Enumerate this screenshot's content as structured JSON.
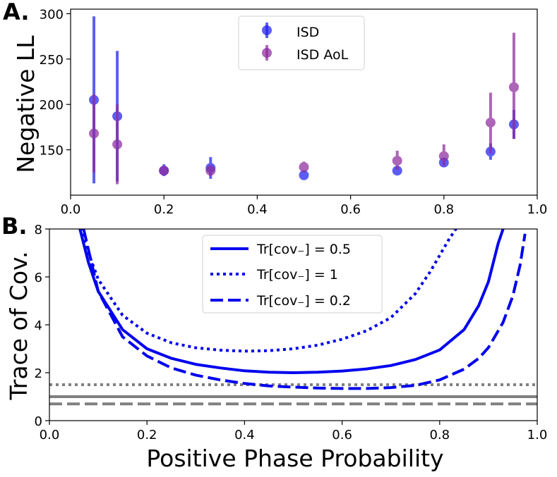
{
  "chart_data": [
    {
      "type": "scatter",
      "panel_label": "A.",
      "title": "",
      "xlabel": "",
      "ylabel": "Negative LL",
      "xlim": [
        0.0,
        1.0
      ],
      "ylim": [
        100,
        305
      ],
      "xticks": [
        "0.0",
        "0.2",
        "0.4",
        "0.6",
        "0.8",
        "1.0"
      ],
      "yticks": [
        "150",
        "200",
        "250",
        "300"
      ],
      "grid": false,
      "legend_position": "top-center",
      "series": [
        {
          "name": "ISD",
          "color": "#2020ee",
          "points": [
            {
              "x": 0.05,
              "y": 205,
              "lo": 113,
              "hi": 297
            },
            {
              "x": 0.1,
              "y": 187,
              "lo": 115,
              "hi": 259
            },
            {
              "x": 0.2,
              "y": 127,
              "lo": 121,
              "hi": 134
            },
            {
              "x": 0.3,
              "y": 130,
              "lo": 118,
              "hi": 142
            },
            {
              "x": 0.5,
              "y": 122,
              "lo": 118,
              "hi": 126
            },
            {
              "x": 0.7,
              "y": 127,
              "lo": 123,
              "hi": 131
            },
            {
              "x": 0.8,
              "y": 136,
              "lo": 131,
              "hi": 141
            },
            {
              "x": 0.9,
              "y": 148,
              "lo": 139,
              "hi": 157
            },
            {
              "x": 0.95,
              "y": 178,
              "lo": 162,
              "hi": 194
            }
          ]
        },
        {
          "name": "ISD AoL",
          "color": "#8e2a9e",
          "points": [
            {
              "x": 0.05,
              "y": 168,
              "lo": 125,
              "hi": 211
            },
            {
              "x": 0.1,
              "y": 156,
              "lo": 112,
              "hi": 200
            },
            {
              "x": 0.2,
              "y": 127,
              "lo": 122,
              "hi": 132
            },
            {
              "x": 0.3,
              "y": 127,
              "lo": 121,
              "hi": 133
            },
            {
              "x": 0.5,
              "y": 131,
              "lo": 125,
              "hi": 137
            },
            {
              "x": 0.7,
              "y": 138,
              "lo": 128,
              "hi": 149
            },
            {
              "x": 0.8,
              "y": 143,
              "lo": 132,
              "hi": 156
            },
            {
              "x": 0.9,
              "y": 180,
              "lo": 146,
              "hi": 213
            },
            {
              "x": 0.95,
              "y": 219,
              "lo": 162,
              "hi": 279
            }
          ]
        }
      ]
    },
    {
      "type": "line",
      "panel_label": "B.",
      "title": "",
      "xlabel": "Positive Phase Probability",
      "ylabel": "Trace of Cov.",
      "xlim": [
        0.0,
        1.0
      ],
      "ylim": [
        0,
        8
      ],
      "xticks": [
        "0.0",
        "0.2",
        "0.4",
        "0.6",
        "0.8",
        "1.0"
      ],
      "yticks": [
        "0",
        "2",
        "4",
        "6",
        "8"
      ],
      "grid": false,
      "legend_position": "top-center",
      "series": [
        {
          "name": "Tr[cov₋] = 0.5",
          "style": "solid",
          "color": "#0000ee",
          "x": [
            0.06,
            0.08,
            0.1,
            0.15,
            0.2,
            0.25,
            0.3,
            0.35,
            0.4,
            0.45,
            0.5,
            0.55,
            0.6,
            0.65,
            0.7,
            0.75,
            0.8,
            0.85,
            0.88,
            0.9,
            0.92,
            0.935
          ],
          "y": [
            8.2,
            6.6,
            5.4,
            3.8,
            3.0,
            2.6,
            2.35,
            2.2,
            2.08,
            2.02,
            2.0,
            2.02,
            2.07,
            2.16,
            2.3,
            2.55,
            2.95,
            3.8,
            4.8,
            5.8,
            7.4,
            8.3
          ]
        },
        {
          "name": "Tr[cov₋] = 1",
          "style": "dotted",
          "color": "#0000ee",
          "x": [
            0.06,
            0.08,
            0.1,
            0.15,
            0.2,
            0.25,
            0.3,
            0.35,
            0.4,
            0.45,
            0.5,
            0.55,
            0.6,
            0.65,
            0.7,
            0.75,
            0.78,
            0.8,
            0.82,
            0.84,
            0.86
          ],
          "y": [
            8.3,
            7.0,
            5.9,
            4.4,
            3.65,
            3.25,
            3.04,
            2.94,
            2.9,
            2.92,
            3.0,
            3.15,
            3.4,
            3.75,
            4.3,
            5.3,
            6.2,
            6.9,
            7.6,
            8.2,
            8.6
          ]
        },
        {
          "name": "Tr[cov₋] = 0.2",
          "style": "dashed",
          "color": "#0000ee",
          "x": [
            0.07,
            0.1,
            0.15,
            0.2,
            0.25,
            0.3,
            0.35,
            0.4,
            0.45,
            0.5,
            0.55,
            0.6,
            0.65,
            0.7,
            0.75,
            0.8,
            0.85,
            0.88,
            0.9,
            0.93,
            0.95,
            0.965,
            0.975
          ],
          "y": [
            8.0,
            5.4,
            3.5,
            2.7,
            2.2,
            1.9,
            1.7,
            1.55,
            1.45,
            1.4,
            1.36,
            1.34,
            1.34,
            1.38,
            1.47,
            1.7,
            2.15,
            2.6,
            3.05,
            4.1,
            5.2,
            6.5,
            7.8
          ]
        }
      ],
      "reference_lines": [
        {
          "y": 1.5,
          "style": "dotted",
          "color": "#808080"
        },
        {
          "y": 1.0,
          "style": "solid",
          "color": "#808080"
        },
        {
          "y": 0.7,
          "style": "dashed",
          "color": "#808080"
        }
      ]
    }
  ]
}
